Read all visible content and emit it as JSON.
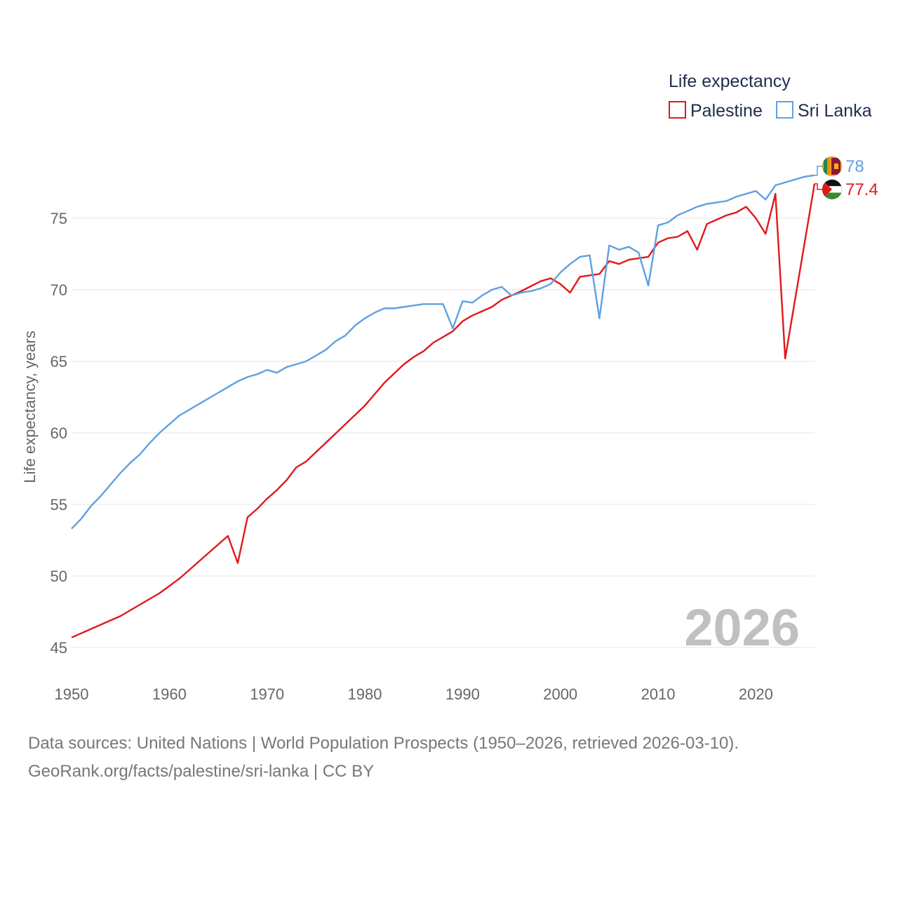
{
  "chart_data": {
    "type": "line",
    "legend_title": "Life expectancy",
    "ylabel": "Life expectancy, years",
    "xlabel": "",
    "year_label": "2026",
    "x_range": [
      1950,
      2026
    ],
    "ylim": [
      44,
      80
    ],
    "y_ticks": [
      45,
      50,
      55,
      60,
      65,
      70,
      75
    ],
    "x_ticks": [
      1950,
      1960,
      1970,
      1980,
      1990,
      2000,
      2010,
      2020
    ],
    "legend_position": "top-right",
    "series": [
      {
        "name": "Palestine",
        "color": "#e0191c",
        "end_label": "77.4",
        "flag_icon": "palestine-flag-icon",
        "points": [
          [
            1950,
            45.7
          ],
          [
            1955,
            47.2
          ],
          [
            1959,
            48.8
          ],
          [
            1961,
            49.8
          ],
          [
            1963,
            51.0
          ],
          [
            1966,
            52.8
          ],
          [
            1967,
            50.9
          ],
          [
            1968,
            54.1
          ],
          [
            1969,
            54.7
          ],
          [
            1970,
            55.4
          ],
          [
            1971,
            56.0
          ],
          [
            1972,
            56.7
          ],
          [
            1973,
            57.6
          ],
          [
            1974,
            58.0
          ],
          [
            1976,
            59.3
          ],
          [
            1978,
            60.6
          ],
          [
            1980,
            61.9
          ],
          [
            1981,
            62.7
          ],
          [
            1982,
            63.5
          ],
          [
            1984,
            64.8
          ],
          [
            1985,
            65.3
          ],
          [
            1986,
            65.7
          ],
          [
            1987,
            66.3
          ],
          [
            1989,
            67.1
          ],
          [
            1990,
            67.8
          ],
          [
            1991,
            68.2
          ],
          [
            1993,
            68.8
          ],
          [
            1994,
            69.3
          ],
          [
            1996,
            69.9
          ],
          [
            1998,
            70.6
          ],
          [
            1999,
            70.8
          ],
          [
            2000,
            70.4
          ],
          [
            2001,
            69.8
          ],
          [
            2002,
            70.9
          ],
          [
            2003,
            71.0
          ],
          [
            2004,
            71.1
          ],
          [
            2005,
            72.0
          ],
          [
            2006,
            71.8
          ],
          [
            2007,
            72.1
          ],
          [
            2009,
            72.3
          ],
          [
            2010,
            73.3
          ],
          [
            2011,
            73.6
          ],
          [
            2012,
            73.7
          ],
          [
            2013,
            74.1
          ],
          [
            2014,
            72.8
          ],
          [
            2015,
            74.6
          ],
          [
            2017,
            75.2
          ],
          [
            2018,
            75.4
          ],
          [
            2019,
            75.8
          ],
          [
            2020,
            75.0
          ],
          [
            2021,
            73.9
          ],
          [
            2022,
            76.7
          ],
          [
            2023,
            65.2
          ],
          [
            2026,
            77.4
          ]
        ]
      },
      {
        "name": "Sri Lanka",
        "color": "#5ea1e0",
        "end_label": "78",
        "flag_icon": "sri-lanka-flag-icon",
        "points": [
          [
            1950,
            53.3
          ],
          [
            1951,
            54.0
          ],
          [
            1952,
            54.9
          ],
          [
            1953,
            55.6
          ],
          [
            1954,
            56.4
          ],
          [
            1955,
            57.2
          ],
          [
            1956,
            57.9
          ],
          [
            1957,
            58.5
          ],
          [
            1958,
            59.3
          ],
          [
            1959,
            60.0
          ],
          [
            1960,
            60.6
          ],
          [
            1961,
            61.2
          ],
          [
            1962,
            61.6
          ],
          [
            1963,
            62.0
          ],
          [
            1964,
            62.4
          ],
          [
            1965,
            62.8
          ],
          [
            1966,
            63.2
          ],
          [
            1967,
            63.6
          ],
          [
            1968,
            63.9
          ],
          [
            1969,
            64.1
          ],
          [
            1970,
            64.4
          ],
          [
            1971,
            64.2
          ],
          [
            1972,
            64.6
          ],
          [
            1973,
            64.8
          ],
          [
            1974,
            65.0
          ],
          [
            1975,
            65.4
          ],
          [
            1976,
            65.8
          ],
          [
            1977,
            66.4
          ],
          [
            1978,
            66.8
          ],
          [
            1979,
            67.5
          ],
          [
            1980,
            68.0
          ],
          [
            1981,
            68.4
          ],
          [
            1982,
            68.7
          ],
          [
            1983,
            68.7
          ],
          [
            1984,
            68.8
          ],
          [
            1985,
            68.9
          ],
          [
            1986,
            69.0
          ],
          [
            1987,
            69.0
          ],
          [
            1988,
            69.0
          ],
          [
            1989,
            67.3
          ],
          [
            1990,
            69.2
          ],
          [
            1991,
            69.1
          ],
          [
            1992,
            69.6
          ],
          [
            1993,
            70.0
          ],
          [
            1994,
            70.2
          ],
          [
            1995,
            69.6
          ],
          [
            1996,
            69.8
          ],
          [
            1997,
            69.9
          ],
          [
            1998,
            70.1
          ],
          [
            1999,
            70.4
          ],
          [
            2000,
            71.2
          ],
          [
            2001,
            71.8
          ],
          [
            2002,
            72.3
          ],
          [
            2003,
            72.4
          ],
          [
            2004,
            68.0
          ],
          [
            2005,
            73.1
          ],
          [
            2006,
            72.8
          ],
          [
            2007,
            73.0
          ],
          [
            2008,
            72.6
          ],
          [
            2009,
            70.3
          ],
          [
            2010,
            74.5
          ],
          [
            2011,
            74.7
          ],
          [
            2012,
            75.2
          ],
          [
            2013,
            75.5
          ],
          [
            2014,
            75.8
          ],
          [
            2015,
            76.0
          ],
          [
            2016,
            76.1
          ],
          [
            2017,
            76.2
          ],
          [
            2018,
            76.5
          ],
          [
            2019,
            76.7
          ],
          [
            2020,
            76.9
          ],
          [
            2021,
            76.3
          ],
          [
            2022,
            77.3
          ],
          [
            2023,
            77.5
          ],
          [
            2024,
            77.7
          ],
          [
            2025,
            77.9
          ],
          [
            2026,
            78.0
          ]
        ]
      }
    ]
  },
  "footer": {
    "source_line": "Data sources: United Nations | World Population Prospects (1950–2026, retrieved 2026-03-10).",
    "url_line": "GeoRank.org/facts/palestine/sri-lanka | CC BY"
  }
}
